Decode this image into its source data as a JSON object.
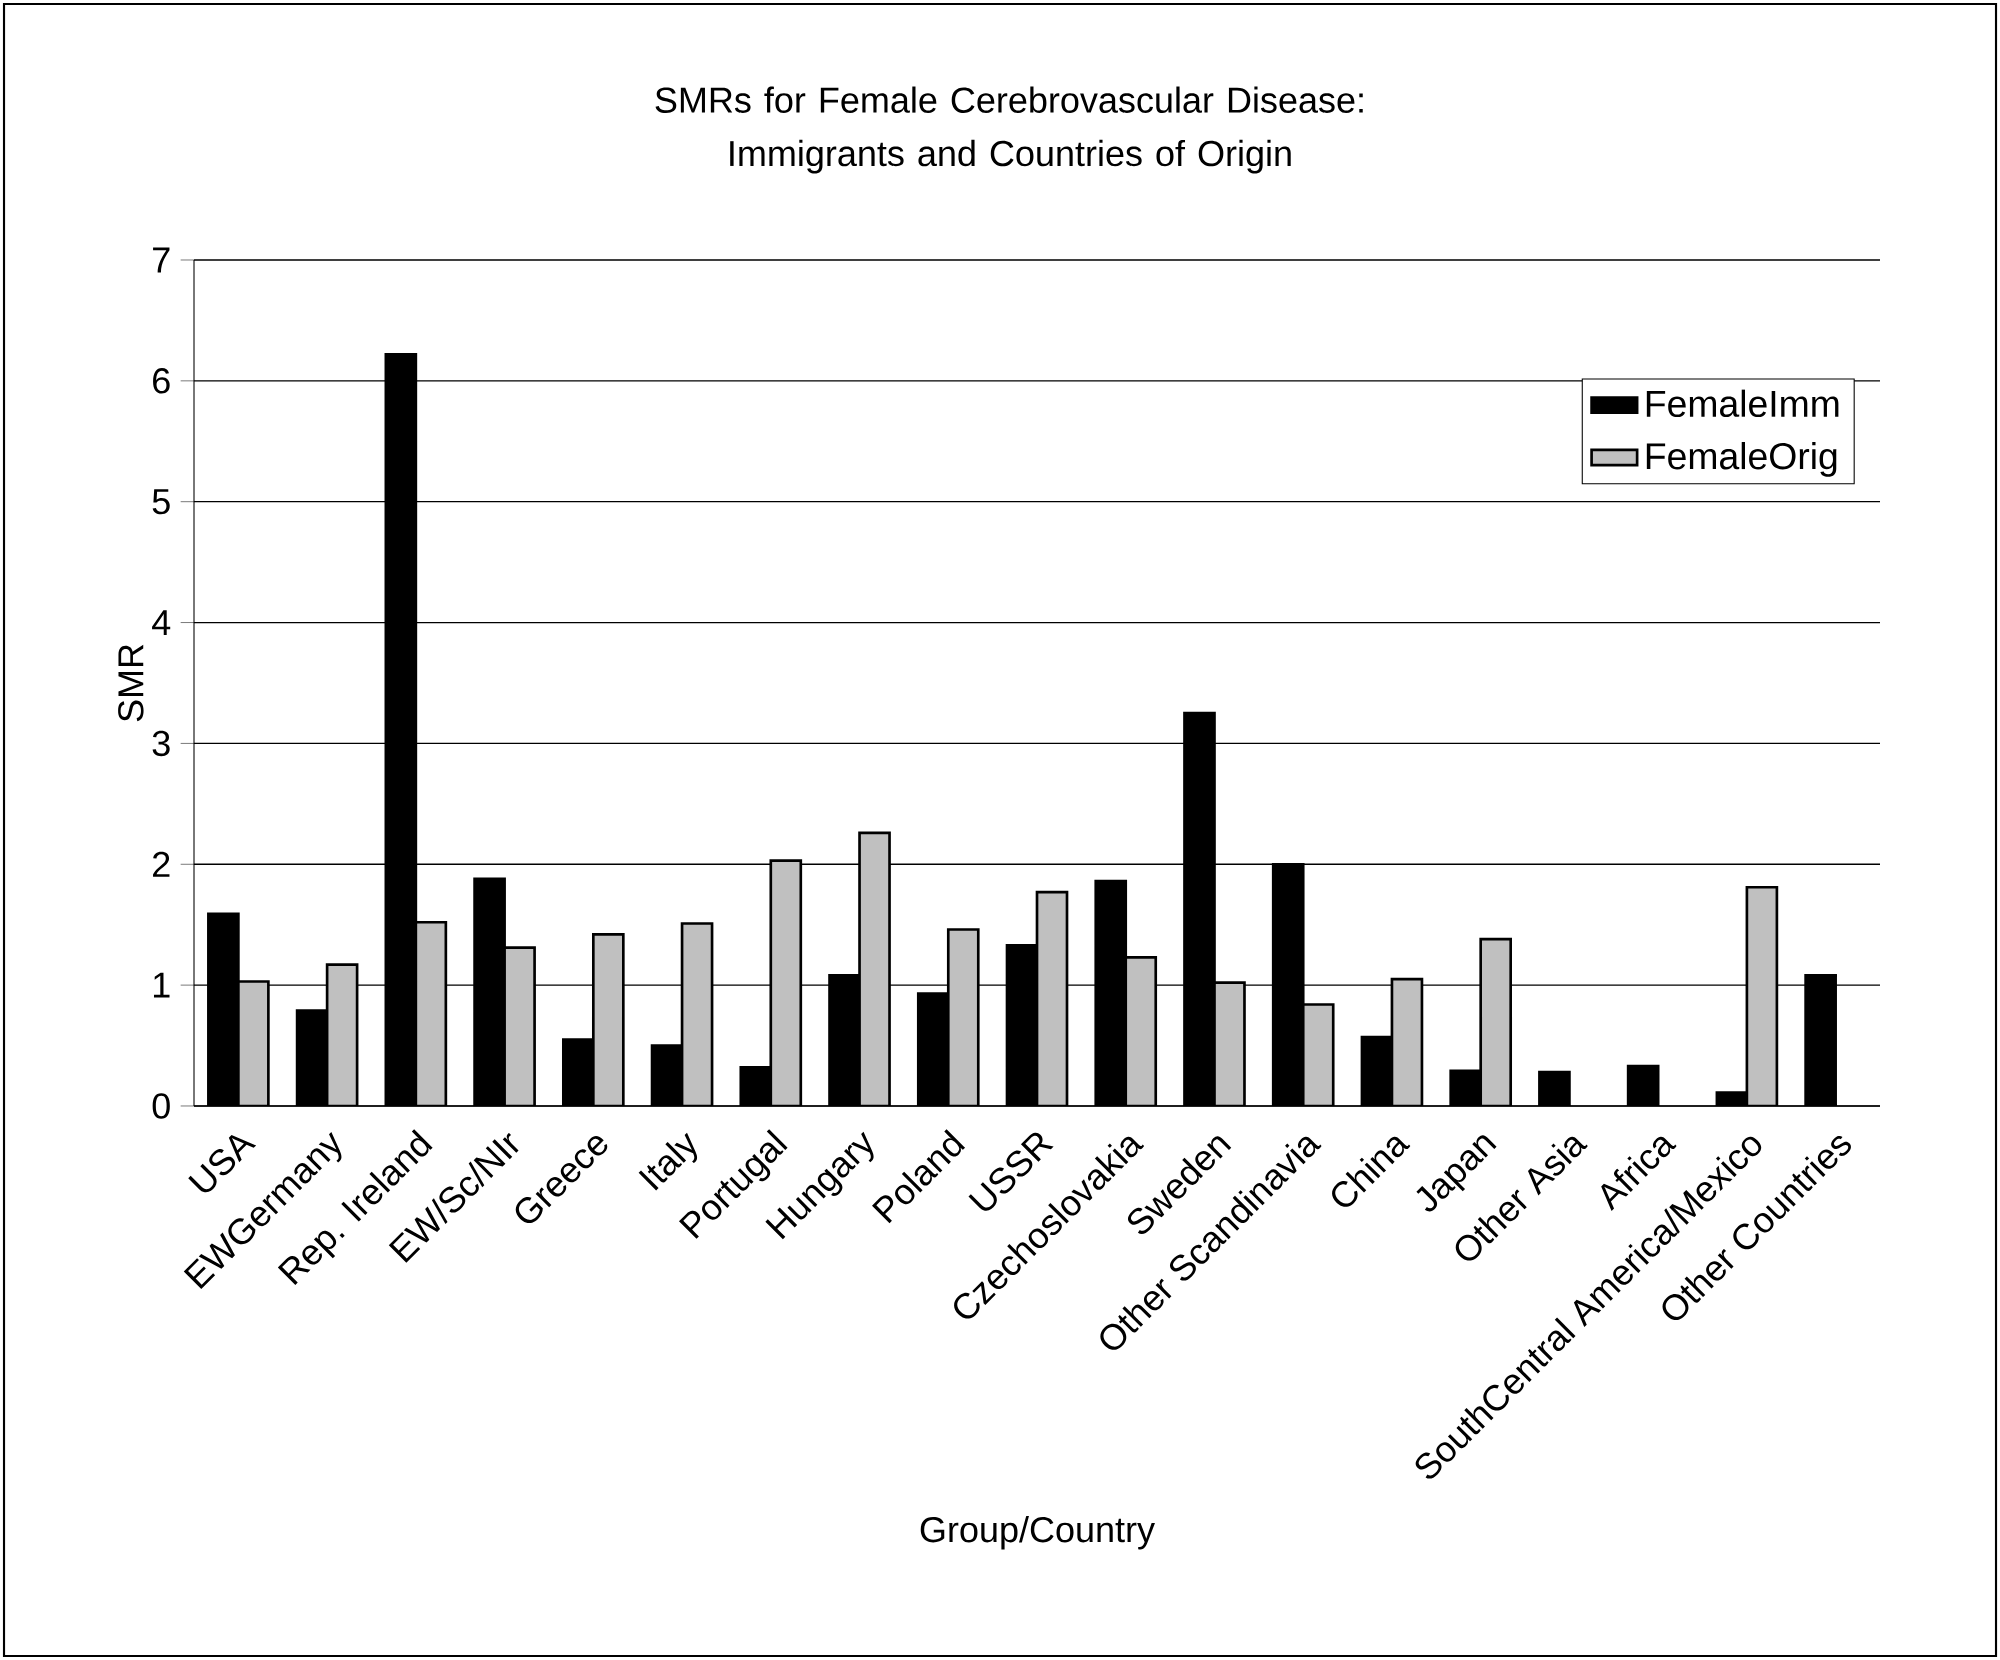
{
  "chart_data": {
    "type": "bar",
    "title": "SMRs for Female Cerebrovascular Disease: Immigrants and Countries of Origin",
    "xlabel": "Group/Country",
    "ylabel": "SMR",
    "categories": [
      "USA",
      "EWGermany",
      "Rep. Ireland",
      "EW/Sc/NIr",
      "Greece",
      "Italy",
      "Portugal",
      "Hungary",
      "Poland",
      "USSR",
      "Czechoslovakia",
      "Sweden",
      "Other Scandinavia",
      "China",
      "Japan",
      "Other Asia",
      "Africa",
      "SouthCentral America/Mexico",
      "Other Countries"
    ],
    "series": [
      {
        "name": "FemaleImm",
        "color": "#000000",
        "values": [
          1.59,
          0.79,
          6.22,
          1.88,
          0.55,
          0.5,
          0.32,
          1.08,
          0.93,
          1.33,
          1.86,
          3.25,
          2.0,
          0.57,
          0.29,
          0.28,
          0.33,
          0.11,
          1.08
        ]
      },
      {
        "name": "FemaleOrig",
        "color": "#c0c0c0",
        "values": [
          1.03,
          1.17,
          1.52,
          1.31,
          1.42,
          1.51,
          2.03,
          2.26,
          1.46,
          1.77,
          1.23,
          1.02,
          0.84,
          1.05,
          1.38,
          null,
          null,
          1.81,
          null
        ]
      }
    ],
    "ylim": [
      0,
      7
    ],
    "yticks": [
      0,
      1,
      2,
      3,
      4,
      5,
      6,
      7
    ],
    "grid": "y",
    "legend": "top right"
  }
}
